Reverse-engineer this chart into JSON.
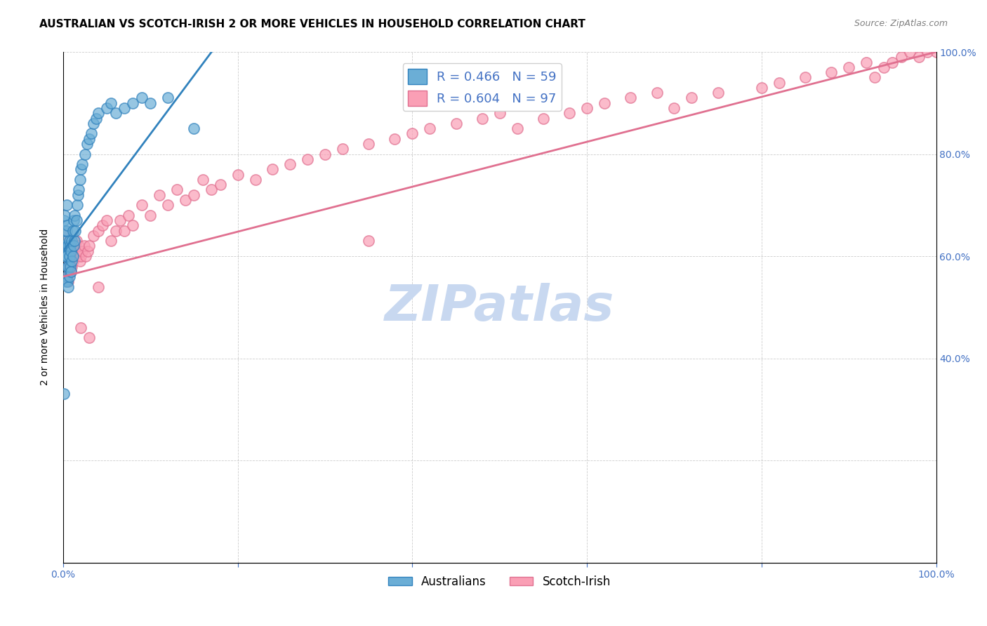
{
  "title": "AUSTRALIAN VS SCOTCH-IRISH 2 OR MORE VEHICLES IN HOUSEHOLD CORRELATION CHART",
  "source": "Source: ZipAtlas.com",
  "xlabel_ticks": [
    "0.0%",
    "100.0%"
  ],
  "ylabel": "2 or more Vehicles in Household",
  "right_yticks": [
    "40.0%",
    "60.0%",
    "80.0%",
    "100.0%"
  ],
  "right_ytick_vals": [
    0.4,
    0.6,
    0.8,
    1.0
  ],
  "legend_label1": "Australians",
  "legend_label2": "Scotch-Irish",
  "r1": 0.466,
  "n1": 59,
  "r2": 0.604,
  "n2": 97,
  "color_blue": "#6baed6",
  "color_pink": "#fa9fb5",
  "color_blue_line": "#3182bd",
  "color_pink_line": "#e07090",
  "watermark": "ZIPatlas",
  "watermark_color": "#c8d8f0",
  "xlim": [
    0.0,
    1.0
  ],
  "ylim": [
    0.0,
    1.0
  ],
  "blue_scatter_x": [
    0.001,
    0.001,
    0.002,
    0.002,
    0.002,
    0.003,
    0.003,
    0.003,
    0.004,
    0.004,
    0.004,
    0.004,
    0.005,
    0.005,
    0.005,
    0.005,
    0.006,
    0.006,
    0.006,
    0.007,
    0.007,
    0.007,
    0.008,
    0.008,
    0.009,
    0.009,
    0.01,
    0.01,
    0.011,
    0.011,
    0.012,
    0.012,
    0.013,
    0.013,
    0.014,
    0.015,
    0.016,
    0.017,
    0.018,
    0.019,
    0.02,
    0.022,
    0.025,
    0.027,
    0.03,
    0.032,
    0.035,
    0.038,
    0.04,
    0.05,
    0.055,
    0.06,
    0.07,
    0.08,
    0.09,
    0.1,
    0.12,
    0.15,
    0.001
  ],
  "blue_scatter_y": [
    0.62,
    0.67,
    0.6,
    0.65,
    0.68,
    0.55,
    0.6,
    0.63,
    0.56,
    0.6,
    0.65,
    0.7,
    0.55,
    0.58,
    0.62,
    0.66,
    0.54,
    0.58,
    0.62,
    0.56,
    0.6,
    0.63,
    0.58,
    0.62,
    0.57,
    0.61,
    0.59,
    0.63,
    0.6,
    0.65,
    0.62,
    0.67,
    0.63,
    0.68,
    0.65,
    0.67,
    0.7,
    0.72,
    0.73,
    0.75,
    0.77,
    0.78,
    0.8,
    0.82,
    0.83,
    0.84,
    0.86,
    0.87,
    0.88,
    0.89,
    0.9,
    0.88,
    0.89,
    0.9,
    0.91,
    0.9,
    0.91,
    0.85,
    0.33
  ],
  "pink_scatter_x": [
    0.001,
    0.001,
    0.002,
    0.002,
    0.003,
    0.003,
    0.004,
    0.004,
    0.005,
    0.005,
    0.006,
    0.006,
    0.007,
    0.007,
    0.008,
    0.008,
    0.009,
    0.009,
    0.01,
    0.01,
    0.011,
    0.012,
    0.013,
    0.014,
    0.015,
    0.016,
    0.017,
    0.018,
    0.019,
    0.02,
    0.022,
    0.024,
    0.026,
    0.028,
    0.03,
    0.035,
    0.04,
    0.045,
    0.05,
    0.055,
    0.06,
    0.065,
    0.07,
    0.075,
    0.08,
    0.09,
    0.1,
    0.11,
    0.12,
    0.13,
    0.14,
    0.15,
    0.16,
    0.17,
    0.18,
    0.2,
    0.22,
    0.24,
    0.26,
    0.28,
    0.3,
    0.32,
    0.35,
    0.38,
    0.4,
    0.42,
    0.45,
    0.48,
    0.5,
    0.52,
    0.55,
    0.58,
    0.6,
    0.62,
    0.65,
    0.68,
    0.7,
    0.72,
    0.75,
    0.8,
    0.82,
    0.85,
    0.88,
    0.9,
    0.92,
    0.93,
    0.94,
    0.95,
    0.96,
    0.97,
    0.98,
    0.99,
    1.0,
    0.02,
    0.03,
    0.04,
    0.35
  ],
  "pink_scatter_y": [
    0.62,
    0.65,
    0.6,
    0.63,
    0.58,
    0.61,
    0.57,
    0.6,
    0.56,
    0.59,
    0.55,
    0.58,
    0.57,
    0.6,
    0.58,
    0.61,
    0.57,
    0.6,
    0.58,
    0.62,
    0.59,
    0.6,
    0.61,
    0.62,
    0.63,
    0.6,
    0.61,
    0.62,
    0.59,
    0.6,
    0.61,
    0.62,
    0.6,
    0.61,
    0.62,
    0.64,
    0.65,
    0.66,
    0.67,
    0.63,
    0.65,
    0.67,
    0.65,
    0.68,
    0.66,
    0.7,
    0.68,
    0.72,
    0.7,
    0.73,
    0.71,
    0.72,
    0.75,
    0.73,
    0.74,
    0.76,
    0.75,
    0.77,
    0.78,
    0.79,
    0.8,
    0.81,
    0.82,
    0.83,
    0.84,
    0.85,
    0.86,
    0.87,
    0.88,
    0.85,
    0.87,
    0.88,
    0.89,
    0.9,
    0.91,
    0.92,
    0.89,
    0.91,
    0.92,
    0.93,
    0.94,
    0.95,
    0.96,
    0.97,
    0.98,
    0.95,
    0.97,
    0.98,
    0.99,
    1.0,
    0.99,
    1.0,
    1.0,
    0.46,
    0.44,
    0.54,
    0.63
  ],
  "blue_line_x": [
    0.0,
    0.17
  ],
  "blue_line_y": [
    0.61,
    1.0
  ],
  "pink_line_x": [
    0.0,
    1.0
  ],
  "pink_line_y": [
    0.56,
    1.0
  ],
  "bg_color": "#ffffff",
  "title_fontsize": 11,
  "source_fontsize": 9,
  "legend_fontsize": 13,
  "axis_label_fontsize": 10
}
